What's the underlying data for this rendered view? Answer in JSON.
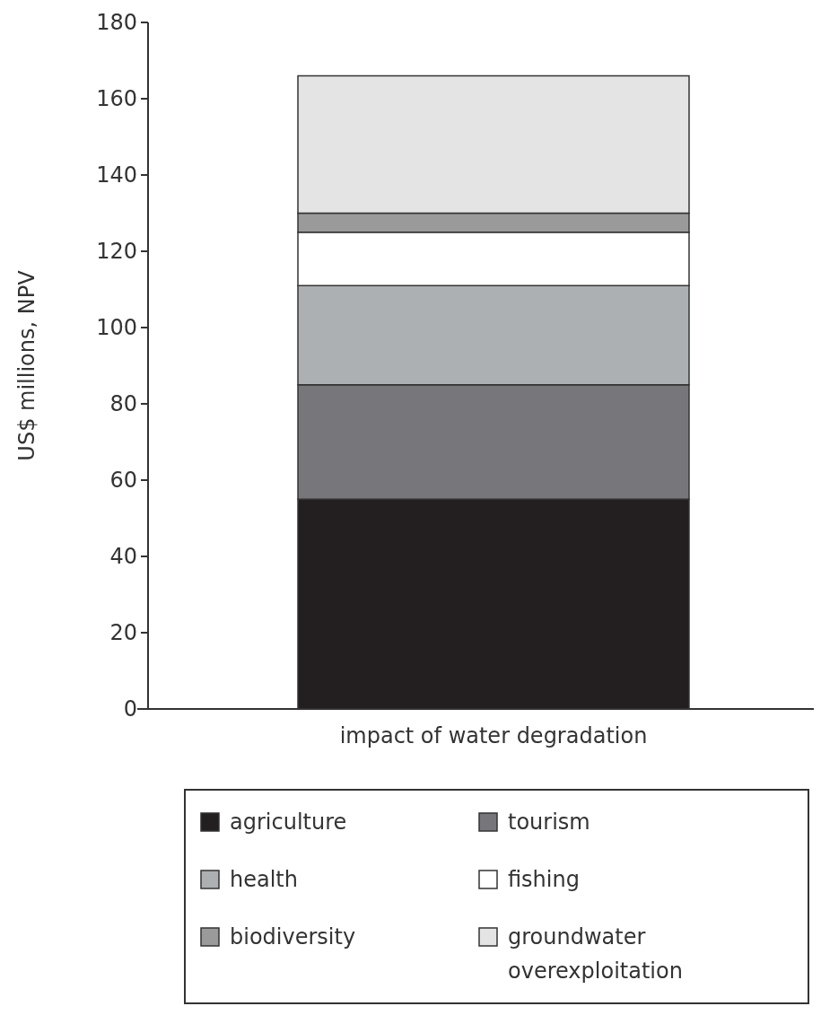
{
  "chart_data": {
    "type": "bar",
    "stacked": true,
    "ylabel": "US$ millions, NPV",
    "categories": [
      "impact of water degradation"
    ],
    "ylim": [
      0,
      180
    ],
    "yticks": [
      0,
      20,
      40,
      60,
      80,
      100,
      120,
      140,
      160,
      180
    ],
    "legend": "bottom",
    "series": [
      {
        "name": "agriculture",
        "color": "#231f20",
        "values": [
          55
        ]
      },
      {
        "name": "tourism",
        "color": "#77767b",
        "values": [
          30
        ]
      },
      {
        "name": "health",
        "color": "#adb0b3",
        "values": [
          26
        ]
      },
      {
        "name": "fishing",
        "color": "#ffffff",
        "values": [
          14
        ]
      },
      {
        "name": "biodiversity",
        "color": "#9a9a9a",
        "values": [
          5
        ]
      },
      {
        "name": "groundwater overexploitation",
        "color": "#e4e4e4",
        "values": [
          36
        ]
      }
    ]
  }
}
